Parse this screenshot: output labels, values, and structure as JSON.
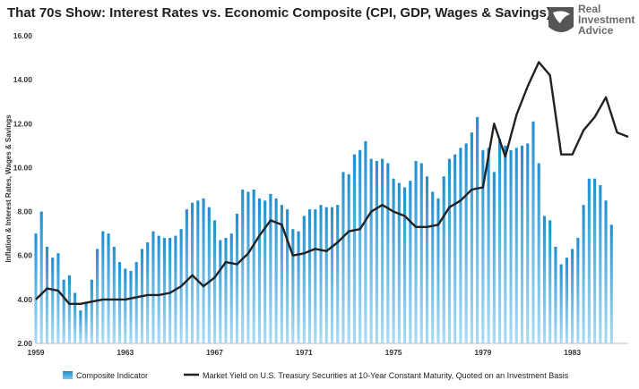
{
  "chart_data": {
    "type": "bar+line",
    "title": "That 70s Show: Interest Rates vs. Economic Composite (CPI, GDP, Wages & Savings)",
    "ylabel": "Inflation & Interest Rates, Wages & Savings",
    "xlabel": "",
    "ylim": [
      2,
      16
    ],
    "xlim": [
      1959,
      1985.5
    ],
    "y_ticks": [
      "16.00",
      "14.00",
      "12.00",
      "10.00",
      "8.00",
      "6.00",
      "4.00",
      "2.00"
    ],
    "x_ticks": [
      "1959",
      "1963",
      "1967",
      "1971",
      "1975",
      "1979",
      "1983"
    ],
    "grid": false,
    "legend_position": "bottom",
    "series": [
      {
        "name": "Composite Indicator",
        "kind": "bar",
        "color": "#1f8fd0",
        "x_start": 1959.0,
        "x_step": 0.25,
        "values": [
          7.0,
          8.0,
          6.4,
          5.9,
          6.1,
          4.9,
          5.1,
          4.3,
          3.5,
          3.9,
          4.9,
          6.3,
          7.1,
          7.0,
          6.4,
          5.7,
          5.4,
          5.3,
          5.7,
          6.3,
          6.6,
          7.1,
          6.9,
          6.8,
          6.8,
          6.9,
          7.2,
          8.1,
          8.4,
          8.5,
          8.6,
          8.2,
          7.6,
          6.7,
          6.8,
          7.0,
          7.9,
          9.0,
          8.9,
          9.0,
          8.6,
          8.5,
          8.8,
          8.6,
          8.3,
          8.1,
          7.2,
          7.1,
          7.8,
          8.1,
          8.1,
          8.3,
          8.2,
          8.2,
          8.3,
          9.8,
          9.7,
          10.6,
          10.8,
          11.2,
          10.4,
          10.3,
          10.4,
          10.2,
          9.5,
          9.3,
          9.1,
          9.4,
          10.3,
          10.2,
          9.6,
          8.9,
          8.6,
          9.6,
          10.4,
          10.6,
          10.9,
          11.1,
          11.6,
          12.3,
          10.8,
          10.9,
          9.8,
          11.3,
          11.0,
          10.8,
          10.9,
          11.0,
          11.1,
          12.1,
          10.2,
          7.8,
          7.6,
          6.4,
          5.6,
          5.9,
          6.3,
          6.8,
          8.3,
          9.5,
          9.5,
          9.2,
          8.5,
          7.4
        ]
      },
      {
        "name": "Market Yield on U.S. Treasury Securities at 10-Year Constant Maturity, Quoted on an Investment Basis",
        "kind": "line",
        "color": "#222222",
        "x": [
          1959.0,
          1959.5,
          1960.0,
          1960.5,
          1961.0,
          1961.5,
          1962.0,
          1962.5,
          1963.0,
          1963.5,
          1964.0,
          1964.5,
          1965.0,
          1965.5,
          1966.0,
          1966.5,
          1967.0,
          1967.5,
          1968.0,
          1968.5,
          1969.0,
          1969.5,
          1970.0,
          1970.5,
          1971.0,
          1971.5,
          1972.0,
          1972.5,
          1973.0,
          1973.5,
          1974.0,
          1974.5,
          1975.0,
          1975.5,
          1976.0,
          1976.5,
          1977.0,
          1977.5,
          1978.0,
          1978.5,
          1979.0,
          1979.5,
          1980.0,
          1980.5,
          1981.0,
          1981.5,
          1982.0,
          1982.5,
          1983.0,
          1983.5,
          1984.0,
          1984.5,
          1985.0,
          1985.5
        ],
        "values": [
          4.0,
          4.5,
          4.4,
          3.8,
          3.8,
          3.9,
          4.0,
          4.0,
          4.0,
          4.1,
          4.2,
          4.2,
          4.3,
          4.6,
          5.1,
          4.6,
          5.0,
          5.7,
          5.6,
          6.1,
          6.9,
          7.6,
          7.4,
          6.0,
          6.1,
          6.3,
          6.2,
          6.6,
          7.1,
          7.2,
          8.0,
          8.3,
          8.0,
          7.8,
          7.3,
          7.3,
          7.4,
          8.2,
          8.5,
          9.0,
          9.1,
          12.0,
          10.5,
          12.4,
          13.7,
          14.8,
          14.2,
          10.6,
          10.6,
          11.7,
          12.3,
          13.2,
          11.6,
          11.4
        ]
      }
    ]
  },
  "brand": {
    "line1": "Real",
    "line2": "Investment",
    "line3": "Advice"
  },
  "icons": {
    "logo": "eagle-shield-logo"
  }
}
